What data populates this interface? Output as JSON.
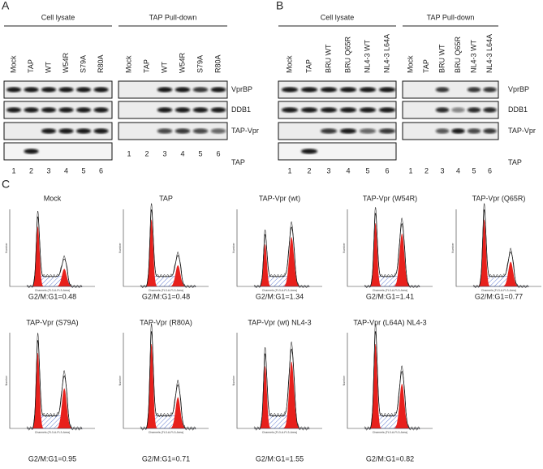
{
  "panel_a": {
    "letter": "A",
    "cell_lysate": {
      "title": "Cell lysate",
      "lanes": [
        "Mock",
        "TAP",
        "WT",
        "W54R",
        "S79A",
        "R80A"
      ],
      "numbers": [
        1,
        2,
        3,
        4,
        5,
        6
      ]
    },
    "pull_down": {
      "title": "TAP Pull-down",
      "lanes": [
        "Mock",
        "TAP",
        "WT",
        "W54R",
        "S79A",
        "R80A"
      ],
      "numbers": [
        1,
        2,
        3,
        4,
        5,
        6
      ]
    },
    "blot_labels": [
      "VprBP",
      "DDB1",
      "TAP-Vpr",
      "TAP"
    ]
  },
  "panel_b": {
    "letter": "B",
    "cell_lysate": {
      "title": "Cell lysate",
      "lanes": [
        "Mock",
        "TAP",
        "BRU WT",
        "BRU Q65R",
        "NL4-3 WT",
        "NL4-3 L64A"
      ],
      "numbers": [
        1,
        2,
        3,
        4,
        5,
        6
      ]
    },
    "pull_down": {
      "title": "TAP Pull-down",
      "lanes": [
        "Mock",
        "TAP",
        "BRU WT",
        "BRU Q65R",
        "NL4-3 WT",
        "NL4-3 L64A"
      ],
      "numbers": [
        1,
        2,
        3,
        4,
        5,
        6
      ]
    },
    "blot_labels": [
      "VprBP",
      "DDB1",
      "TAP-Vpr",
      "TAP"
    ]
  },
  "panel_c": {
    "letter": "C",
    "x_axis_label": "Channels (FL3-A-FL3-Area)",
    "y_axis_label": "Number",
    "histograms": [
      {
        "title": "Mock",
        "ratio": "G2/M:G1=0.48"
      },
      {
        "title": "TAP",
        "ratio": "G2/M:G1=0.48"
      },
      {
        "title": "TAP-Vpr (wt)",
        "ratio": "G2/M:G1=1.34"
      },
      {
        "title": "TAP-Vpr (W54R)",
        "ratio": "G2/M:G1=1.41"
      },
      {
        "title": "TAP-Vpr (Q65R)",
        "ratio": "G2/M:G1=0.77"
      },
      {
        "title": "TAP-Vpr (S79A)",
        "ratio": "G2/M:G1=0.95"
      },
      {
        "title": "TAP-Vpr (R80A)",
        "ratio": "G2/M:G1=0.71"
      },
      {
        "title": "TAP-Vpr (wt) NL4-3",
        "ratio": "G2/M:G1=1.55"
      },
      {
        "title": "TAP-Vpr (L64A) NL4-3",
        "ratio": "G2/M:G1=0.82"
      }
    ]
  }
}
